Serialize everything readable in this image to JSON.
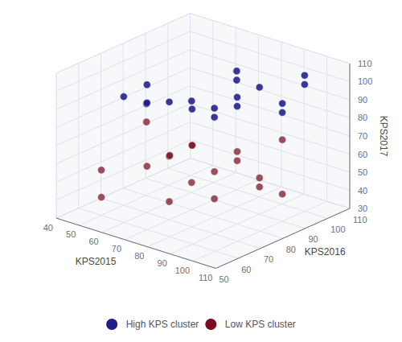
{
  "chart_data": {
    "type": "scatter3d",
    "xlabel": "KPS2015",
    "ylabel": "KPS2016",
    "zlabel": "KPS2017",
    "xlim": [
      40,
      110
    ],
    "ylim": [
      50,
      110
    ],
    "zlim": [
      30,
      110
    ],
    "xticks": [
      40,
      50,
      60,
      70,
      80,
      90,
      100,
      110
    ],
    "yticks": [
      50,
      60,
      70,
      80,
      90,
      100,
      110
    ],
    "zticks": [
      30,
      40,
      50,
      60,
      70,
      80,
      90,
      100,
      110
    ],
    "grid": true,
    "legend": "bottom",
    "series": [
      {
        "name": "High KPS cluster",
        "color": "#1c1c8a",
        "values": [
          [
            50,
            70,
            90
          ],
          [
            60,
            70,
            90
          ],
          [
            70,
            60,
            110
          ],
          [
            70,
            60,
            100
          ],
          [
            70,
            70,
            95
          ],
          [
            70,
            80,
            90
          ],
          [
            80,
            70,
            95
          ],
          [
            80,
            80,
            90
          ],
          [
            80,
            80,
            85
          ],
          [
            80,
            90,
            100
          ],
          [
            80,
            90,
            105
          ],
          [
            90,
            80,
            95
          ],
          [
            90,
            80,
            100
          ],
          [
            90,
            90,
            100
          ],
          [
            100,
            90,
            90
          ],
          [
            100,
            90,
            95
          ],
          [
            100,
            100,
            100
          ],
          [
            100,
            100,
            105
          ]
        ]
      },
      {
        "name": "Low KPS cluster",
        "color": "#7a0c1e",
        "values": [
          [
            50,
            60,
            55
          ],
          [
            50,
            60,
            40
          ],
          [
            60,
            70,
            80
          ],
          [
            70,
            60,
            65
          ],
          [
            70,
            70,
            65
          ],
          [
            70,
            70,
            40
          ],
          [
            70,
            80,
            45
          ],
          [
            80,
            60,
            75
          ],
          [
            80,
            70,
            75
          ],
          [
            80,
            70,
            75
          ],
          [
            80,
            80,
            55
          ],
          [
            80,
            80,
            40
          ],
          [
            90,
            80,
            70
          ],
          [
            90,
            80,
            65
          ],
          [
            90,
            90,
            50
          ],
          [
            90,
            90,
            45
          ],
          [
            100,
            90,
            75
          ],
          [
            100,
            90,
            45
          ]
        ]
      }
    ]
  }
}
